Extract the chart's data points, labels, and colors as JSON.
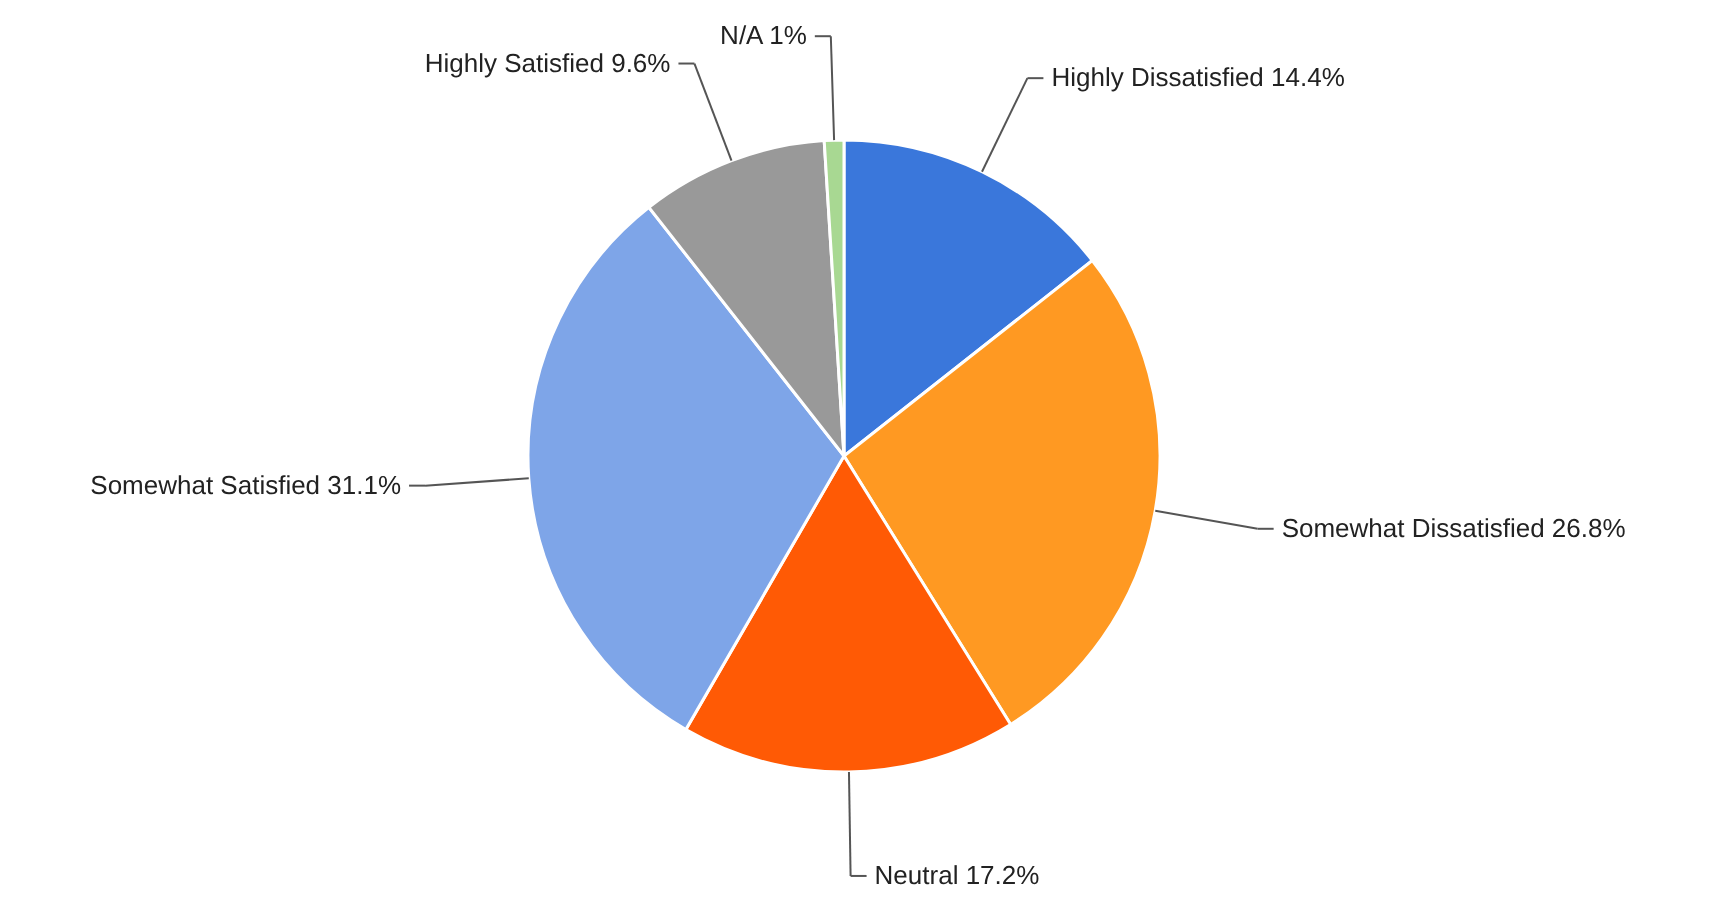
{
  "chart_data": {
    "type": "pie",
    "categories": [
      "Highly Dissatisfied",
      "Somewhat Dissatisfied",
      "Neutral",
      "Somewhat Satisfied",
      "Highly Satisfied",
      "N/A"
    ],
    "values": [
      14.4,
      26.8,
      17.2,
      31.1,
      9.6,
      1
    ],
    "colors": [
      "#3a77db",
      "#ff9922",
      "#ff5a05",
      "#7ea5e8",
      "#999999",
      "#a8d892"
    ],
    "value_labels": [
      "14.4%",
      "26.8%",
      "17.2%",
      "31.1%",
      "9.6%",
      "1%"
    ]
  }
}
